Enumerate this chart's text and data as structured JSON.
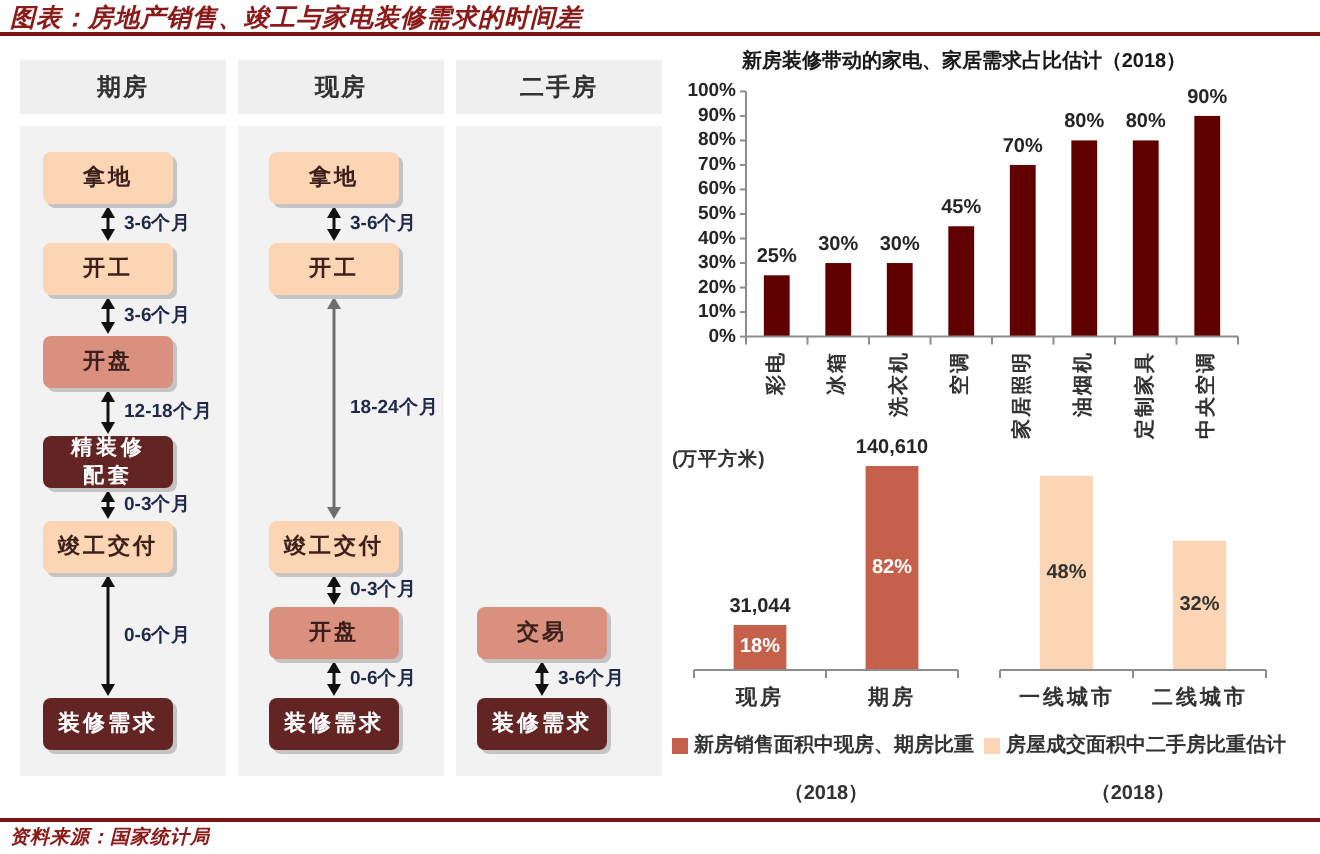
{
  "chart_data": [
    {
      "type": "other",
      "title": "图表：房地产销售、竣工与家电装修需求的时间差",
      "annotations": [
        "资料来源：国家统计局"
      ]
    },
    {
      "type": "other",
      "title": "期房",
      "annotations": [
        "拿地",
        "3-6个月",
        "开工",
        "3-6个月",
        "开盘",
        "12-18个月",
        "精装修配套",
        "0-3个月",
        "竣工交付",
        "0-6个月",
        "装修需求"
      ],
      "colors": [
        "#fcd5b4",
        "#fcd5b4",
        "#d9907e",
        "#632523",
        "#fcd5b4",
        "#632523"
      ]
    },
    {
      "type": "other",
      "title": "现房",
      "annotations": [
        "拿地",
        "3-6个月",
        "开工",
        "18-24个月",
        "竣工交付",
        "0-3个月",
        "开盘",
        "0-6个月",
        "装修需求"
      ],
      "colors": [
        "#fcd5b4",
        "#fcd5b4",
        "#fcd5b4",
        "#d9907e",
        "#632523"
      ]
    },
    {
      "type": "other",
      "title": "二手房",
      "annotations": [
        "交易",
        "3-6个月",
        "装修需求"
      ],
      "colors": [
        "#d9907e",
        "#632523"
      ]
    },
    {
      "type": "bar",
      "title": "新房装修带动的家电、家居需求占比估计（2018）",
      "categories": [
        "彩电",
        "冰箱",
        "洗衣机",
        "空调",
        "家居照明",
        "油烟机",
        "定制家具",
        "中央空调"
      ],
      "series": [
        {
          "color": "#600000",
          "values": [
            25,
            30,
            30,
            45,
            70,
            80,
            80,
            90
          ],
          "value_labels": [
            "25%",
            "30%",
            "30%",
            "45%",
            "70%",
            "80%",
            "80%",
            "90%"
          ]
        }
      ],
      "ylim": [
        0,
        100
      ],
      "yticks": [
        {
          "value": 0,
          "label": "0%"
        },
        {
          "value": 10,
          "label": "10%"
        },
        {
          "value": 20,
          "label": "20%"
        },
        {
          "value": 30,
          "label": "30%"
        },
        {
          "value": 40,
          "label": "40%"
        },
        {
          "value": 50,
          "label": "50%"
        },
        {
          "value": 60,
          "label": "60%"
        },
        {
          "value": 70,
          "label": "70%"
        },
        {
          "value": 80,
          "label": "80%"
        },
        {
          "value": 90,
          "label": "90%"
        },
        {
          "value": 100,
          "label": "100%"
        }
      ]
    },
    {
      "type": "bar",
      "ylabel": "(万平方米)",
      "xlabel": "（2018）",
      "categories": [
        "现房",
        "期房"
      ],
      "series": [
        {
          "name": "新房销售面积中现房、期房比重",
          "color": "#c5604a",
          "values": [
            31044,
            140610
          ],
          "value_labels": [
            "31,044",
            "140,610"
          ]
        }
      ],
      "annotations": [
        "18%",
        "82%"
      ],
      "legend": "bottom"
    },
    {
      "type": "bar",
      "xlabel": "（2018）",
      "categories": [
        "一线城市",
        "二线城市"
      ],
      "series": [
        {
          "name": "房屋成交面积中二手房比重估计",
          "color": "#fcd5b5",
          "values": [
            48,
            32
          ],
          "value_labels": [
            "48%",
            "32%"
          ]
        }
      ],
      "legend": "bottom"
    }
  ]
}
